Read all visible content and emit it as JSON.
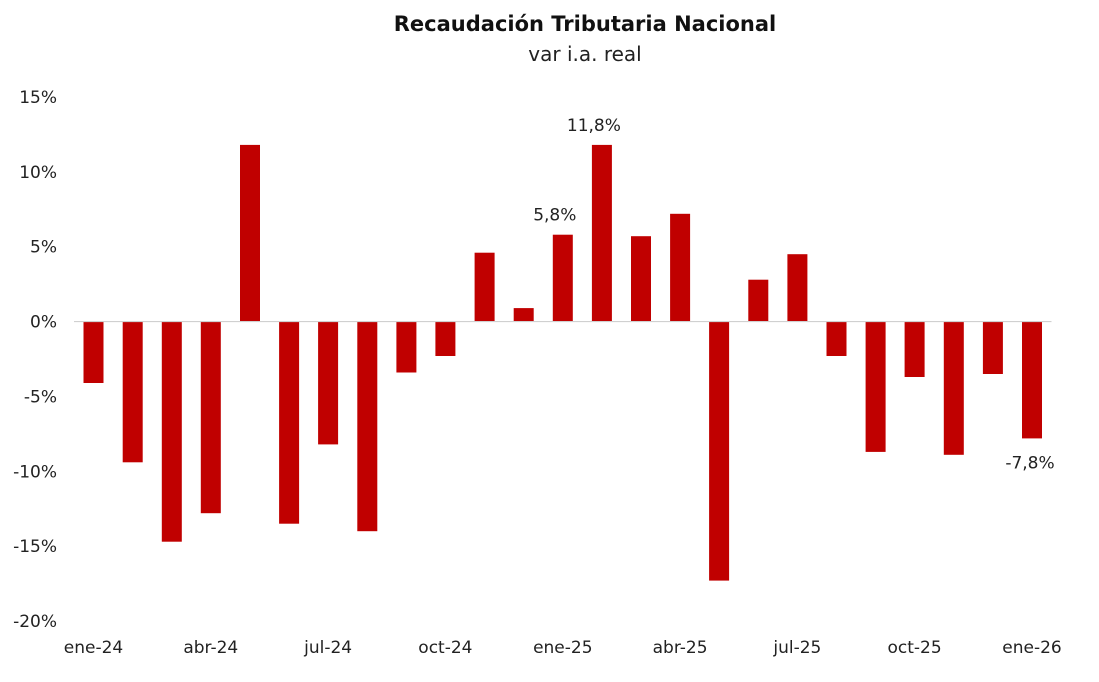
{
  "chart_data": {
    "type": "bar",
    "title": "Recaudación Tributaria Nacional",
    "subtitle": "var i.a. real",
    "xlabel": "",
    "ylabel": "",
    "ylim": [
      -20,
      15
    ],
    "y_ticks": [
      15,
      10,
      5,
      0,
      -5,
      -10,
      -15,
      -20
    ],
    "y_tick_labels": [
      "15%",
      "10%",
      "5%",
      "0%",
      "-5%",
      "-10%",
      "-15%",
      "-20%"
    ],
    "categories": [
      "ene-24",
      "feb-24",
      "mar-24",
      "abr-24",
      "may-24",
      "jun-24",
      "jul-24",
      "ago-24",
      "sep-24",
      "oct-24",
      "nov-24",
      "dic-24",
      "ene-25",
      "feb-25",
      "mar-25",
      "abr-25",
      "may-25",
      "jun-25",
      "jul-25",
      "ago-25",
      "sep-25",
      "oct-25",
      "nov-25",
      "dic-25",
      "ene-26"
    ],
    "x_tick_labels": [
      {
        "index": 0,
        "label": "ene-24"
      },
      {
        "index": 3,
        "label": "abr-24"
      },
      {
        "index": 6,
        "label": "jul-24"
      },
      {
        "index": 9,
        "label": "oct-24"
      },
      {
        "index": 12,
        "label": "ene-25"
      },
      {
        "index": 15,
        "label": "abr-25"
      },
      {
        "index": 18,
        "label": "jul-25"
      },
      {
        "index": 21,
        "label": "oct-25"
      },
      {
        "index": 24,
        "label": "ene-26"
      }
    ],
    "values": [
      -4.1,
      -9.4,
      -14.7,
      -12.8,
      11.8,
      -13.5,
      -8.2,
      -14.0,
      -3.4,
      -2.3,
      4.6,
      0.9,
      5.8,
      11.8,
      5.7,
      7.2,
      -17.3,
      2.8,
      4.5,
      -2.3,
      -8.7,
      -3.7,
      -8.9,
      -3.5,
      -7.8
    ],
    "data_labels": [
      {
        "index": 12,
        "label": "5,8%"
      },
      {
        "index": 13,
        "label": "11,8%"
      },
      {
        "index": 24,
        "label": "-7,8%"
      }
    ],
    "bar_color": "#c00000",
    "grid": false
  }
}
